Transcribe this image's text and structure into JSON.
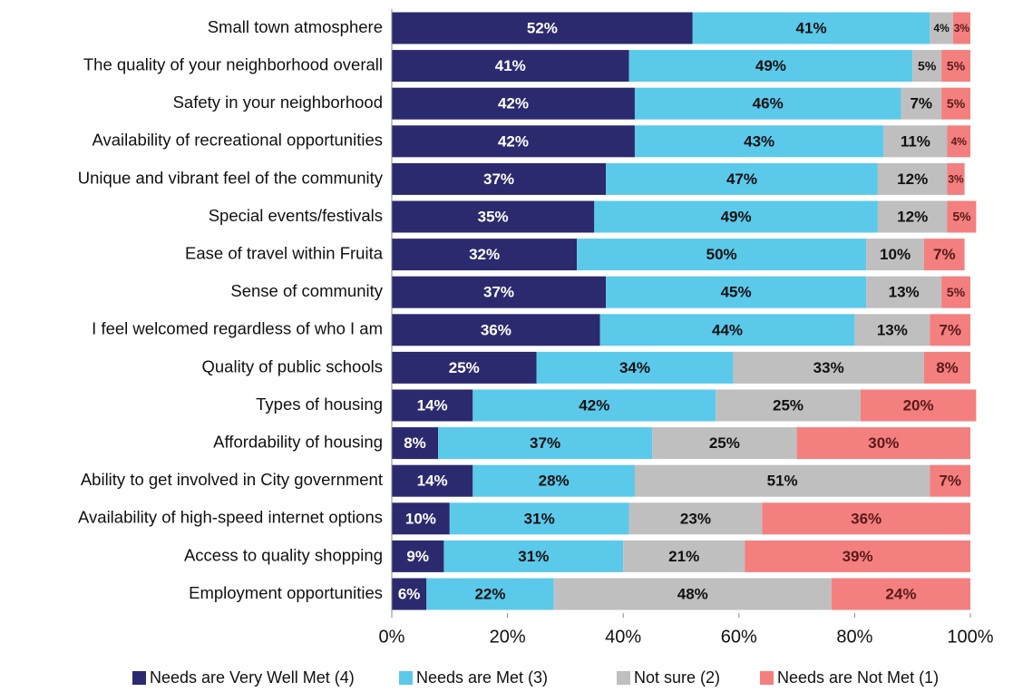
{
  "chart_data": {
    "type": "stacked-barh",
    "categories": [
      "Small town atmosphere",
      "The quality of your neighborhood overall",
      "Safety in your neighborhood",
      "Availability of recreational opportunities",
      "Unique and vibrant feel of the community",
      "Special events/festivals",
      "Ease of travel within Fruita",
      "Sense of community",
      "I feel welcomed regardless of who I am",
      "Quality of public schools",
      "Types of housing",
      "Affordability of housing",
      "Ability to get involved in City government",
      "Availability of high-speed internet options",
      "Access to quality shopping",
      "Employment opportunities"
    ],
    "series": [
      {
        "name": "Needs are Very Well Met (4)",
        "color": "#2b2a6f",
        "label_color": "#ffffff",
        "values": [
          52,
          41,
          42,
          42,
          37,
          35,
          32,
          37,
          36,
          25,
          14,
          8,
          14,
          10,
          9,
          6
        ],
        "value_labels": [
          "52%",
          "41%",
          "42%",
          "42%",
          "37%",
          "35%",
          "32%",
          "37%",
          "36%",
          "25%",
          "14%",
          "8%",
          "14%",
          "10%",
          "9%",
          "6%"
        ]
      },
      {
        "name": "Needs are Met (3)",
        "color": "#5bc9ea",
        "label_color": "#111111",
        "values": [
          41,
          49,
          46,
          43,
          47,
          49,
          50,
          45,
          44,
          34,
          42,
          37,
          28,
          31,
          31,
          22
        ],
        "value_labels": [
          "41%",
          "49%",
          "46%",
          "43%",
          "47%",
          "49%",
          "50%",
          "45%",
          "44%",
          "34%",
          "42%",
          "37%",
          "28%",
          "31%",
          "31%",
          "22%"
        ]
      },
      {
        "name": "Not sure (2)",
        "color": "#bfbfbf",
        "label_color": "#111111",
        "values": [
          4,
          5,
          7,
          11,
          12,
          12,
          10,
          13,
          13,
          33,
          25,
          25,
          51,
          23,
          21,
          48
        ],
        "value_labels": [
          "4%",
          "5%",
          "7%",
          "11%",
          "12%",
          "12%",
          "10%",
          "13%",
          "13%",
          "33%",
          "25%",
          "25%",
          "51%",
          "23%",
          "21%",
          "48%"
        ]
      },
      {
        "name": "Needs are Not Met (1)",
        "color": "#f47f7f",
        "label_color": "#5a1a1a",
        "values": [
          3,
          5,
          5,
          4,
          3,
          5,
          7,
          5,
          7,
          8,
          20,
          30,
          7,
          36,
          39,
          24
        ],
        "value_labels": [
          "3%",
          "5%",
          "5%",
          "4%",
          "3%",
          "5%",
          "7%",
          "5%",
          "7%",
          "8%",
          "20%",
          "30%",
          "7%",
          "36%",
          "39%",
          "24%"
        ]
      }
    ],
    "xlim": [
      0,
      100
    ],
    "xticks": [
      {
        "value": 0,
        "label": "0%"
      },
      {
        "value": 20,
        "label": "20%"
      },
      {
        "value": 40,
        "label": "40%"
      },
      {
        "value": 60,
        "label": "60%"
      },
      {
        "value": 80,
        "label": "80%"
      },
      {
        "value": 100,
        "label": "100%"
      }
    ],
    "legend": "bottom"
  }
}
